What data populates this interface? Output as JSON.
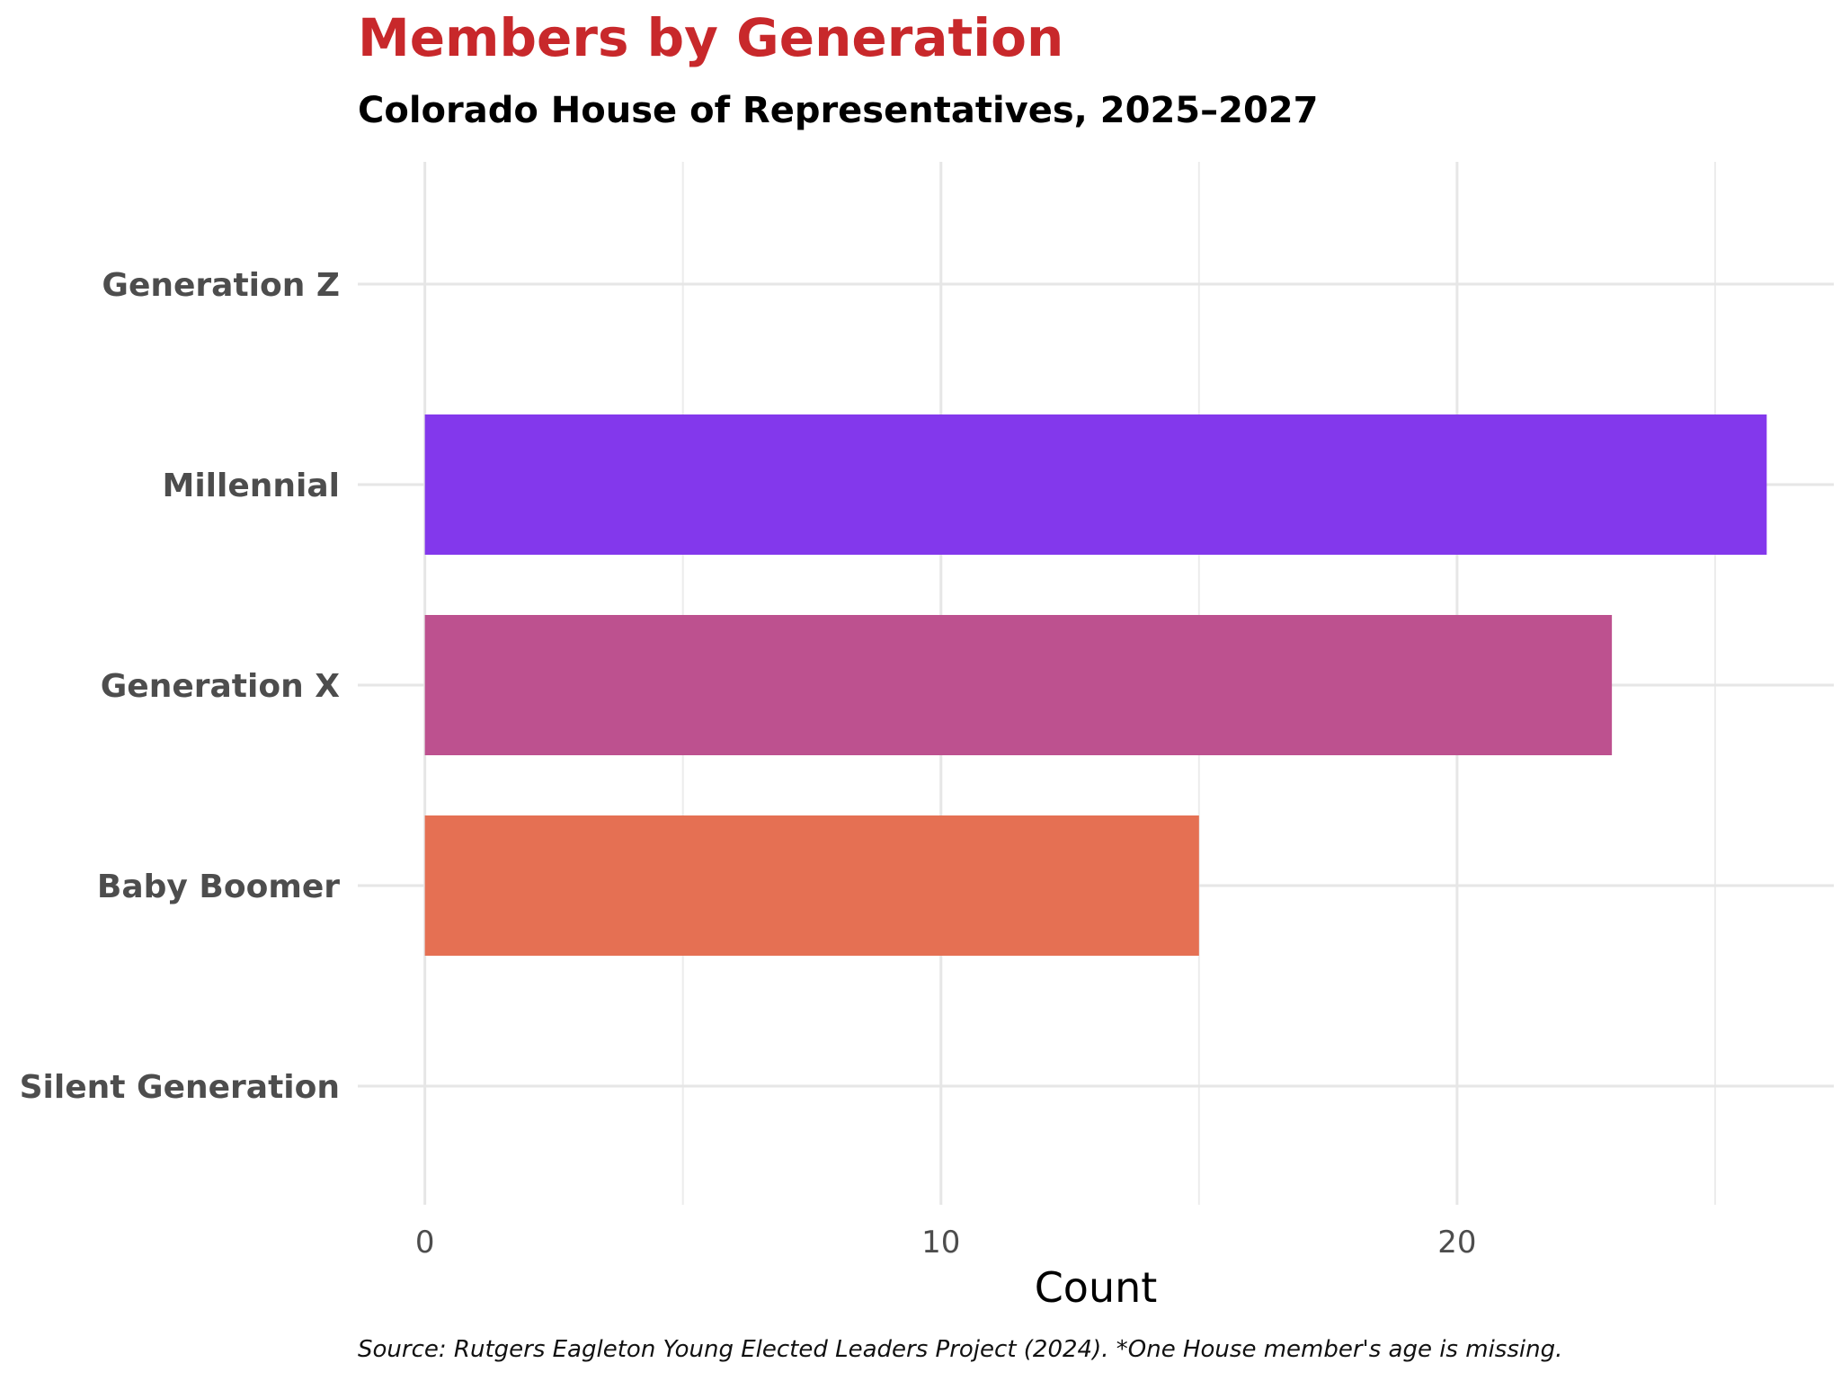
{
  "chart_data": {
    "type": "bar",
    "orientation": "horizontal",
    "title": "Members by Generation",
    "subtitle": "Colorado House of Representatives, 2025–2027",
    "xlabel": "Count",
    "ylabel": "",
    "caption": "Source: Rutgers Eagleton Young Elected Leaders Project (2024). *One House member's age is missing.",
    "categories": [
      "Generation Z",
      "Millennial",
      "Generation X",
      "Baby Boomer",
      "Silent Generation"
    ],
    "values": [
      0,
      26,
      23,
      15,
      0
    ],
    "colors": [
      "#8338ec",
      "#8338ec",
      "#bd518f",
      "#e57053",
      "#e57053"
    ],
    "xlim": [
      -1.3,
      27.3
    ],
    "xticks": [
      0,
      10,
      20
    ],
    "xtick_labels": [
      "0",
      "10",
      "20"
    ],
    "minor_gridlines": [
      5,
      15,
      25
    ],
    "grid": true,
    "legend": "none",
    "title_color": "#c8282b"
  }
}
